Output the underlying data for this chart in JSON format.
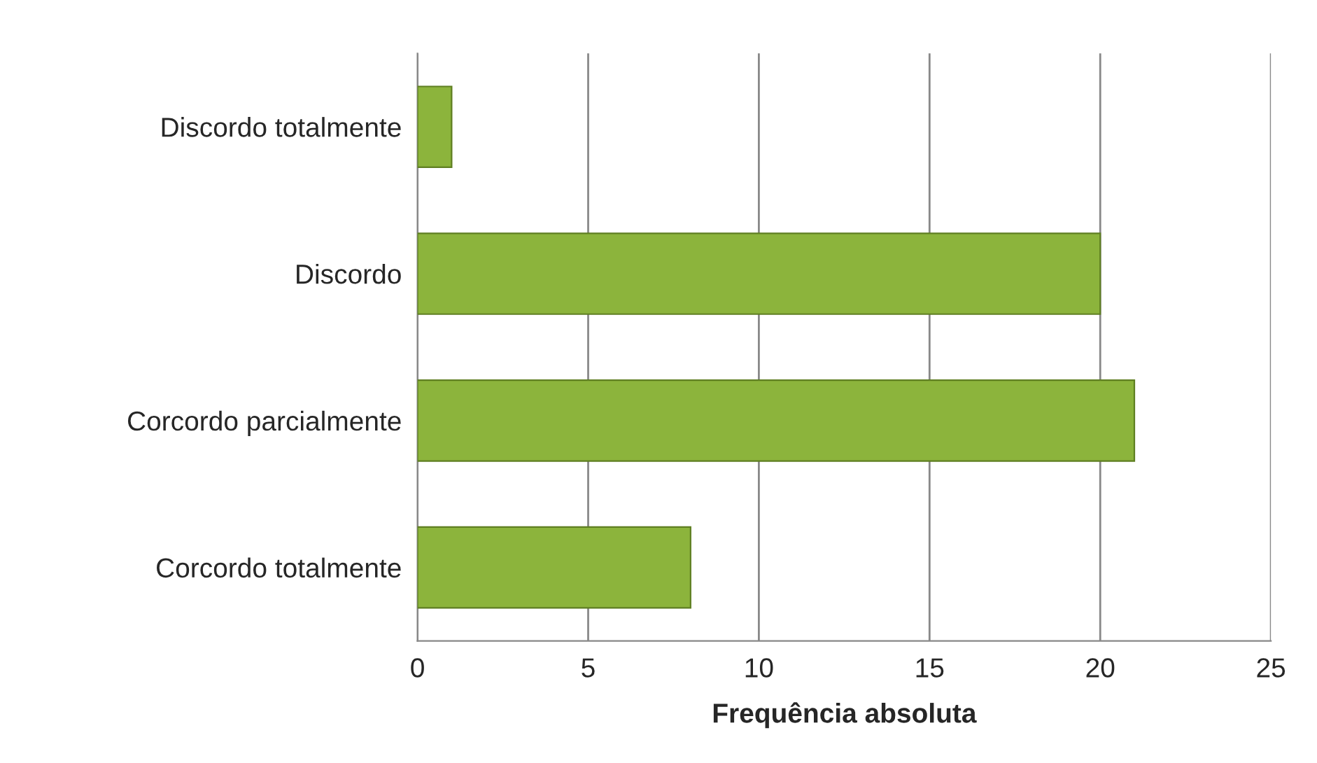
{
  "chart_data": {
    "type": "bar",
    "orientation": "horizontal",
    "xlabel": "Frequência absoluta",
    "categories": [
      "Discordo totalmente",
      "Discordo",
      "Corcordo parcialmente",
      "Corcordo totalmente"
    ],
    "values": [
      1,
      20,
      21,
      8
    ],
    "color": "#8cb43c",
    "xlim": [
      0,
      25
    ],
    "xticks": [
      0,
      5,
      10,
      15,
      20,
      25
    ],
    "grid": "x"
  }
}
